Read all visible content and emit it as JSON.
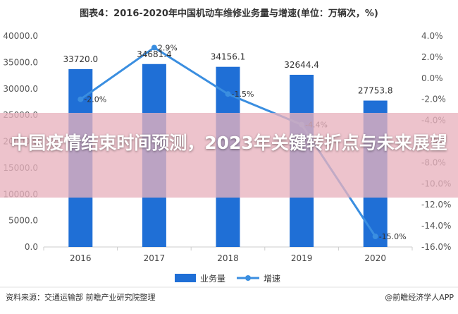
{
  "chart_data": {
    "type": "bar+line",
    "title": "图表4：2016-2020年中国机动车维修业务量与增速(单位：万辆次，%)",
    "categories": [
      "2016",
      "2017",
      "2018",
      "2019",
      "2020"
    ],
    "series": [
      {
        "name": "业务量",
        "type": "bar",
        "axis": "left",
        "color": "#1f6fd6",
        "values": [
          33720.0,
          34681.4,
          34156.1,
          32644.4,
          27753.8
        ],
        "labels": [
          "33720.0",
          "34681.4",
          "34156.1",
          "32644.4",
          "27753.8"
        ]
      },
      {
        "name": "增速",
        "type": "line",
        "axis": "right",
        "color": "#3a8ee0",
        "values": [
          -2.0,
          2.9,
          -1.5,
          -4.4,
          -15.0
        ],
        "labels": [
          "-2.0%",
          "2.9%",
          "-1.5%",
          "-4.4%",
          "-15.0%"
        ]
      }
    ],
    "y_left": {
      "min": 0,
      "max": 40000,
      "step": 5000,
      "ticks": [
        "0.0",
        "5000.0",
        "10000.0",
        "15000.0",
        "20000.0",
        "25000.0",
        "30000.0",
        "35000.0",
        "40000.0"
      ]
    },
    "y_right": {
      "min": -16,
      "max": 4,
      "step": 2,
      "ticks": [
        "-16.0%",
        "-14.0%",
        "-12.0%",
        "-10.0%",
        "-8.0%",
        "-6.0%",
        "-4.0%",
        "-2.0%",
        "0.0%",
        "2.0%",
        "4.0%"
      ]
    },
    "legend": {
      "position": "bottom",
      "items": [
        "业务量",
        "增速"
      ]
    },
    "grid": false
  },
  "overlay": {
    "text": "中国疫情结束时间预测，2023年关键转折点与未来展望"
  },
  "footer": {
    "source": "资料来源：交通运输部 前瞻产业研究院整理",
    "brand": "@前瞻经济学人APP"
  },
  "colors": {
    "bar": "#1f6fd6",
    "line": "#3a8ee0",
    "overlay": "#e8b2be"
  }
}
